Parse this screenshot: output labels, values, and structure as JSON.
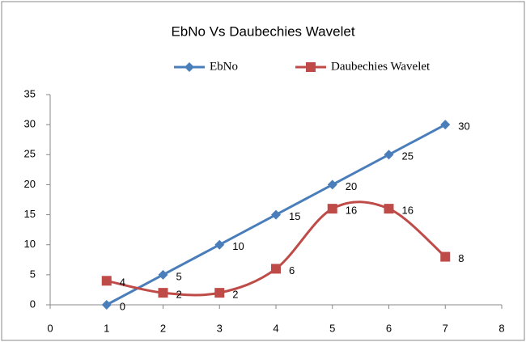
{
  "chart_data": {
    "type": "line",
    "title": "EbNo Vs Daubechies Wavelet",
    "x": [
      1,
      2,
      3,
      4,
      5,
      6,
      7
    ],
    "series": [
      {
        "name": "EbNo",
        "color": "#4a7ebb",
        "marker": "diamond",
        "smooth": false,
        "values": [
          0,
          5,
          10,
          15,
          20,
          25,
          30
        ]
      },
      {
        "name": "Daubechies Wavelet",
        "color": "#be4b48",
        "marker": "square",
        "smooth": true,
        "values": [
          4,
          2,
          2,
          6,
          16,
          16,
          8
        ]
      }
    ],
    "xlim": [
      0,
      8
    ],
    "xticks": [
      0,
      1,
      2,
      3,
      4,
      5,
      6,
      7,
      8
    ],
    "ylim": [
      0,
      35
    ],
    "yticks": [
      0,
      5,
      10,
      15,
      20,
      25,
      30,
      35
    ],
    "grid": false,
    "legend": "top"
  }
}
